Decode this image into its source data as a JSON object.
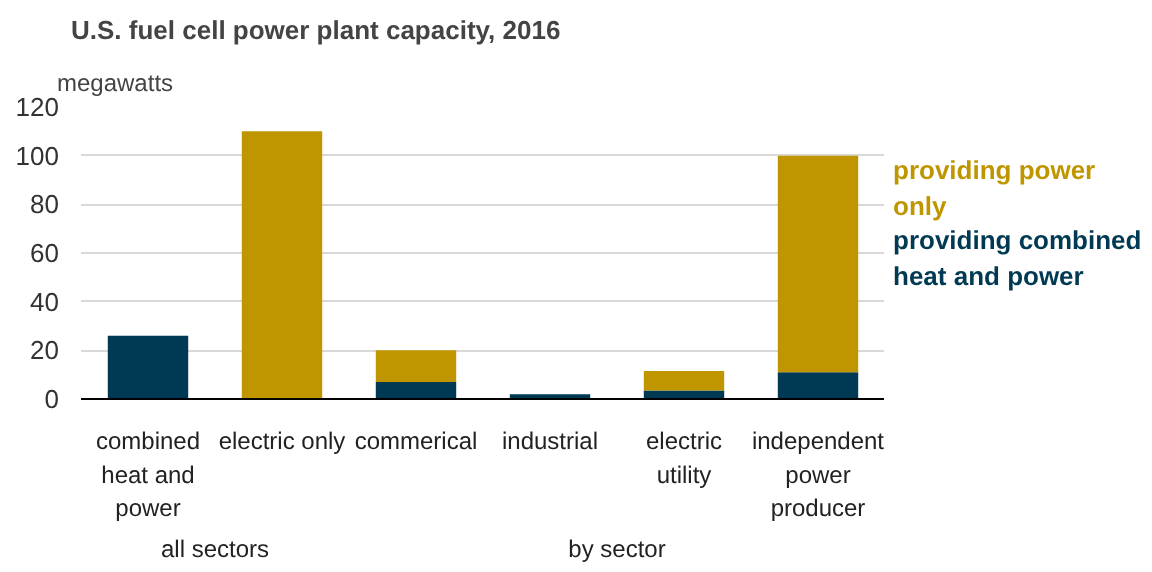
{
  "chart_data": {
    "type": "bar",
    "title": "U.S. fuel cell power plant capacity, 2016",
    "ylabel": "megawatts",
    "categories": [
      "combined\nheat and\npower",
      "electric only",
      "commerical",
      "industrial",
      "electric\nutility",
      "independent\npower\nproducer"
    ],
    "stacked": true,
    "series": [
      {
        "name": "providing combined heat and power",
        "color": "#003953",
        "values": [
          26,
          0,
          7,
          2,
          3.5,
          11
        ]
      },
      {
        "name": "providing power only",
        "color": "#bf9600",
        "values": [
          0,
          110,
          13,
          0,
          8,
          89
        ]
      }
    ],
    "ylim": [
      0,
      120
    ],
    "yticks": [
      0,
      20,
      40,
      60,
      80,
      100,
      120
    ],
    "grid": "y",
    "annotations": [
      "all sectors",
      "by sector"
    ]
  }
}
